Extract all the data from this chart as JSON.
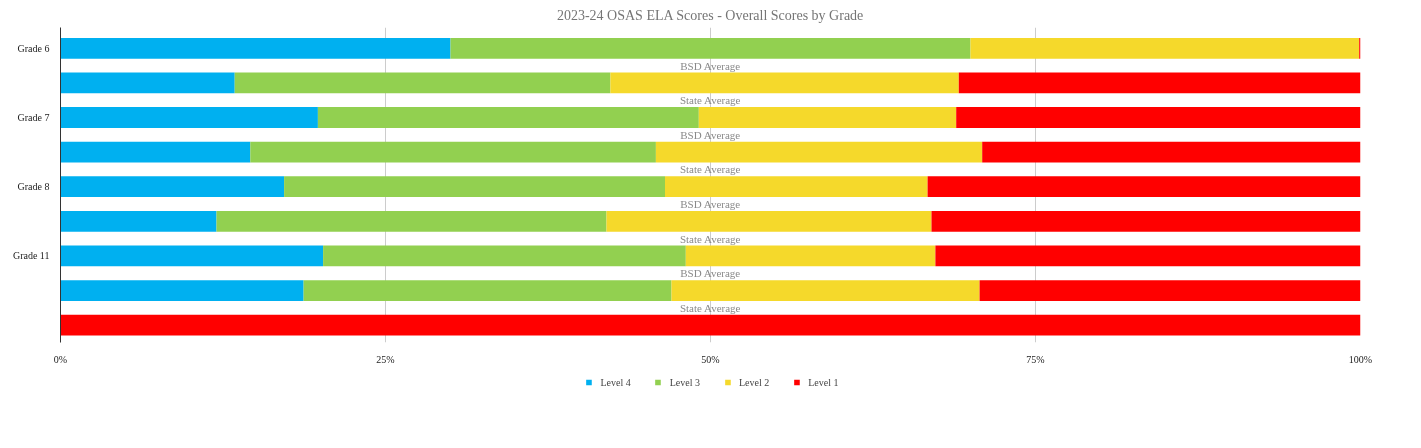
{
  "chart_data": {
    "type": "bar",
    "orientation": "horizontal",
    "stacked": true,
    "title": "2023-24 OSAS ELA Scores - Overall Scores by Grade",
    "categories": [
      "Grade 6",
      null,
      "Grade 7",
      null,
      "Grade 8",
      null,
      "Grade 11",
      null,
      null
    ],
    "series": [
      {
        "name": "Level 4",
        "color": "#00b0f0",
        "values": [
          30.0,
          13.4,
          19.8,
          14.6,
          17.2,
          12.0,
          20.2,
          18.7,
          null
        ]
      },
      {
        "name": "Level 3",
        "color": "#92d050",
        "values": [
          40.0,
          28.9,
          29.3,
          31.2,
          29.3,
          30.0,
          27.9,
          28.3,
          null
        ]
      },
      {
        "name": "Level 2",
        "color": "#f5d92b",
        "values": [
          29.9,
          26.8,
          19.8,
          25.1,
          20.2,
          25.0,
          19.2,
          23.7,
          null
        ]
      },
      {
        "name": "Level 1",
        "color": "#ff0000",
        "values": [
          0.1,
          30.9,
          31.1,
          29.1,
          33.3,
          33.0,
          32.7,
          29.3,
          100
        ]
      }
    ],
    "annotations": [
      "BSD Average",
      "State Average",
      "BSD Average",
      "State Average",
      "BSD Average",
      "State Average",
      "BSD Average",
      "State Average"
    ],
    "xlim": [
      0,
      100
    ],
    "xticks": [
      {
        "value": 0,
        "label": "0%"
      },
      {
        "value": 25,
        "label": "25%"
      },
      {
        "value": 50,
        "label": "50%"
      },
      {
        "value": 75,
        "label": "75%"
      },
      {
        "value": 100,
        "label": "100%"
      }
    ],
    "grid": "x",
    "legend": "bottom"
  }
}
